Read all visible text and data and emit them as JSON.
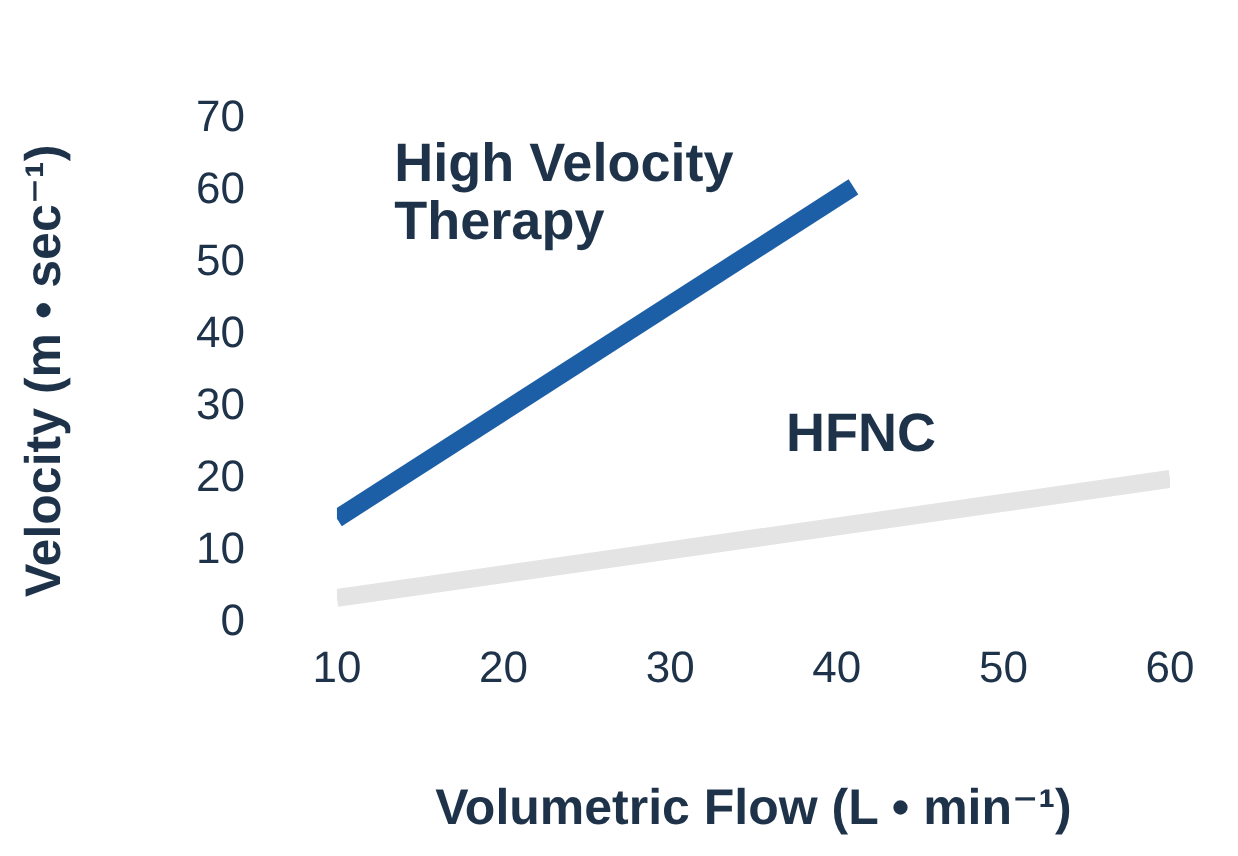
{
  "chart_data": {
    "type": "line",
    "xlabel": "Volumetric Flow (L • min⁻¹)",
    "ylabel": "Velocity (m • sec⁻¹)",
    "xlim": [
      10,
      60
    ],
    "xticks": [
      10,
      20,
      30,
      40,
      50,
      60
    ],
    "ylim": [
      0,
      70
    ],
    "yticks": [
      0,
      10,
      20,
      30,
      40,
      50,
      60,
      70
    ],
    "grid": false,
    "legend": false,
    "marker": "none",
    "line_style": "solid",
    "series": [
      {
        "name": "High Velocity Therapy",
        "color": "#1d5fa6",
        "x": [
          10,
          41
        ],
        "values": [
          14.5,
          60.5
        ]
      },
      {
        "name": "HFNC",
        "color": "#e4e4e4",
        "x": [
          10,
          60
        ],
        "values": [
          3.5,
          20
        ]
      }
    ]
  }
}
